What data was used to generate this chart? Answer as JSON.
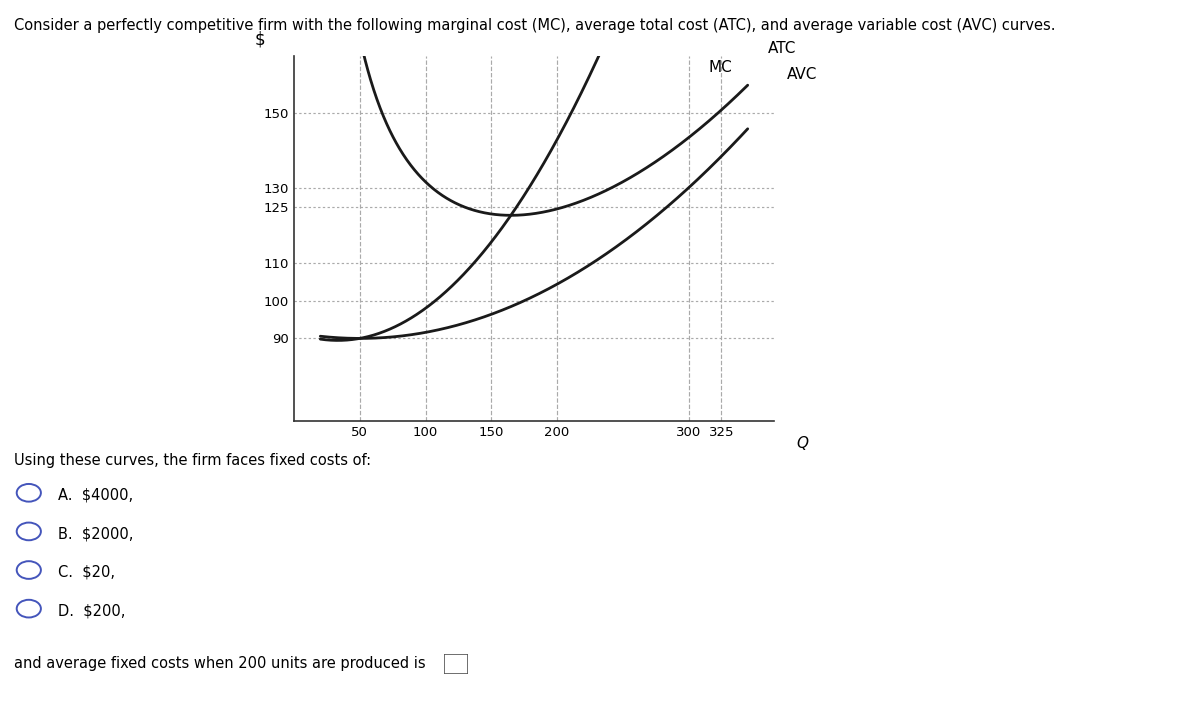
{
  "title": "Consider a perfectly competitive firm with the following marginal cost (MC), average total cost (ATC), and average variable cost (AVC) curves.",
  "xlabel": "Q",
  "ylabel": "$",
  "x_ticks": [
    50,
    100,
    150,
    200,
    300,
    325
  ],
  "y_ticks": [
    90,
    100,
    110,
    125,
    130,
    150
  ],
  "y_lim": [
    68,
    165
  ],
  "x_lim": [
    0,
    365
  ],
  "curve_color": "#1a1a1a",
  "dashed_color": "#aaaaaa",
  "label_ATC": "ATC",
  "label_MC": "MC",
  "label_AVC": "AVC",
  "question_text": "Using these curves, the firm faces fixed costs of:",
  "options": [
    "A.  $4000,",
    "B.  $2000,",
    "C.  $20,",
    "D.  $200,"
  ],
  "answer_text": "and average fixed costs when 200 units are produced is",
  "background_color": "#ffffff",
  "font_color": "#000000",
  "option_circle_color": "#4455bb",
  "a_v": 0.00064,
  "b_v": -0.064,
  "c_v": 91.6,
  "FC": 4000,
  "Q_start": 20,
  "Q_end": 345
}
